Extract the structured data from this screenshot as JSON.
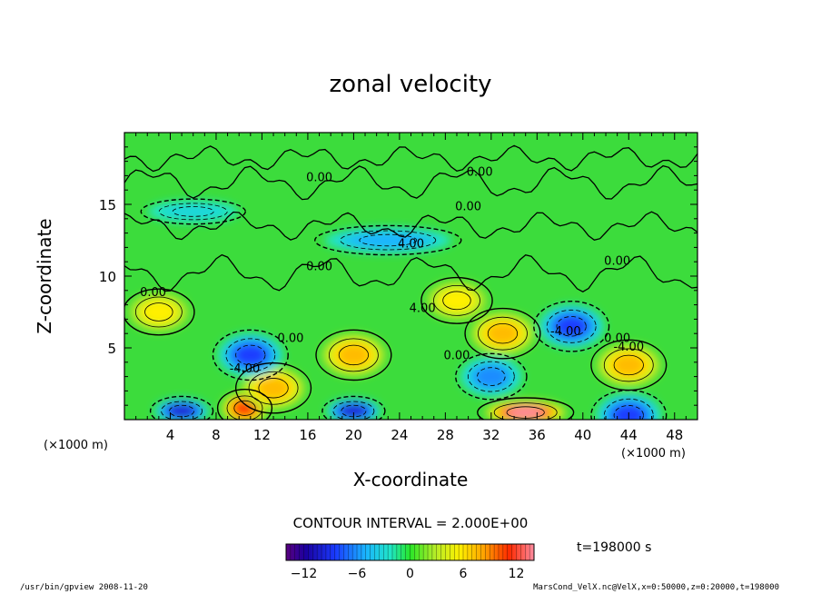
{
  "chart_data": {
    "type": "heatmap",
    "title": "zonal velocity",
    "xlabel": "X-coordinate",
    "ylabel": "Z-coordinate",
    "x_unit_label": "(×1000 m)",
    "y_unit_label": "(×1000 m)",
    "x_ticks": [
      4,
      8,
      12,
      16,
      20,
      24,
      28,
      32,
      36,
      40,
      44,
      48
    ],
    "y_ticks": [
      5,
      10,
      15
    ],
    "xlim": [
      0,
      50
    ],
    "ylim": [
      0,
      20
    ],
    "contour_interval_text": "CONTOUR INTERVAL = 2.000E+00",
    "contour_labels": [
      "0.00",
      "0.00",
      "0.00",
      "0.00",
      "0.00",
      "0.00",
      "0.00",
      "0.00",
      "0.00",
      "-4.00",
      "4.00",
      "4.00",
      "-4.00",
      "-4.00"
    ],
    "colorbar": {
      "range": [
        -14,
        14
      ],
      "ticks": [
        -12,
        -6,
        0,
        6,
        12
      ],
      "colormap": "rainbow (purple-blue-cyan-green-yellow-orange-red-pink)"
    },
    "time_label": "t=198000 s",
    "features": [
      {
        "x": 20,
        "z": 4.5,
        "value": 8,
        "sign": "positive"
      },
      {
        "x": 35,
        "z": 0.5,
        "value": 14,
        "sign": "positive"
      },
      {
        "x": 10.5,
        "z": 0.8,
        "value": 12,
        "sign": "positive"
      },
      {
        "x": 44,
        "z": 3.8,
        "value": 8,
        "sign": "positive"
      },
      {
        "x": 33,
        "z": 6.0,
        "value": 8,
        "sign": "positive"
      },
      {
        "x": 3,
        "z": 7.5,
        "value": 6,
        "sign": "positive"
      },
      {
        "x": 29,
        "z": 8.3,
        "value": 6,
        "sign": "positive"
      },
      {
        "x": 13,
        "z": 2.2,
        "value": 8,
        "sign": "positive"
      },
      {
        "x": 39,
        "z": 6.5,
        "value": -8,
        "sign": "negative"
      },
      {
        "x": 11,
        "z": 4.5,
        "value": -8,
        "sign": "negative"
      },
      {
        "x": 32,
        "z": 3.0,
        "value": -6,
        "sign": "negative"
      },
      {
        "x": 20,
        "z": 0.6,
        "value": -10,
        "sign": "negative"
      },
      {
        "x": 5,
        "z": 0.6,
        "value": -10,
        "sign": "negative"
      },
      {
        "x": 44,
        "z": 0.3,
        "value": -8,
        "sign": "negative"
      },
      {
        "x": 23,
        "z": 12.5,
        "value": -5,
        "sign": "negative"
      },
      {
        "x": 6,
        "z": 14.5,
        "value": -3,
        "sign": "negative"
      }
    ]
  },
  "footer": {
    "left_text": "/usr/bin/gpview  2008-11-20",
    "right_text": "MarsCond_VelX.nc@VelX,x=0:50000,z=0:20000,t=198000"
  }
}
